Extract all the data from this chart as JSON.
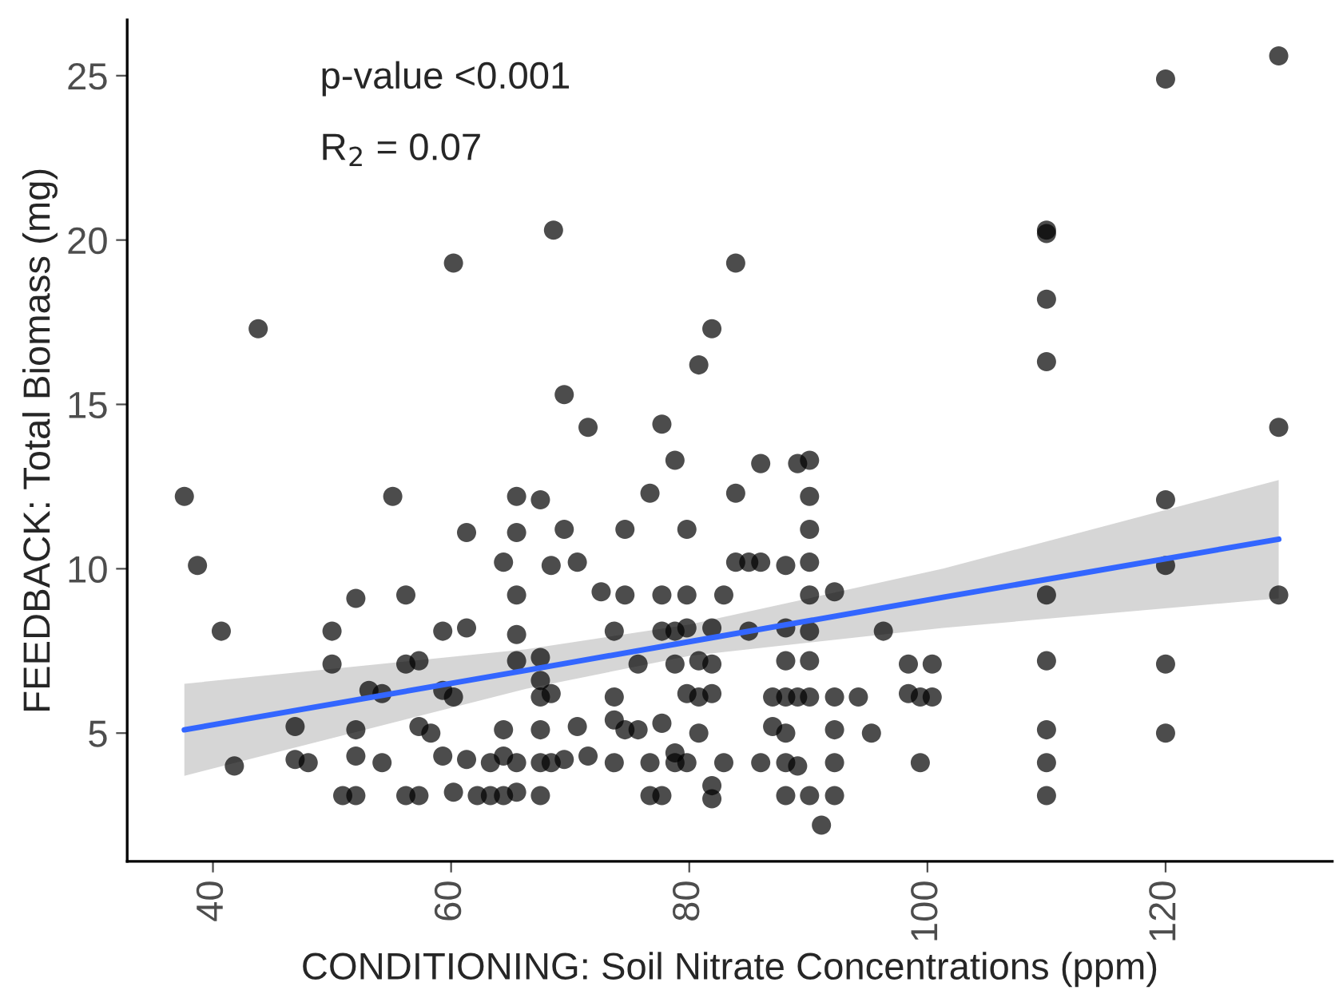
{
  "chart_data": {
    "type": "scatter",
    "xlabel": "CONDITIONING: Soil Nitrate Concentrations (ppm)",
    "ylabel": "FEEDBACK: Total Biomass (mg)",
    "xlim": [
      32.8,
      134
    ],
    "ylim": [
      1.1,
      26.7
    ],
    "xticks": [
      40,
      60,
      80,
      100,
      120
    ],
    "yticks": [
      5,
      10,
      15,
      20,
      25
    ],
    "grid": false,
    "legend": false,
    "annotations": [
      "p-value <0.001",
      "R$_{2}$ = 0.07"
    ],
    "series": [
      {
        "marker": "circle",
        "color": "#000000",
        "x": [
          60.2,
          43.8,
          37.6,
          38.7,
          55.1,
          65.5,
          61.3,
          65.5,
          64.4,
          65.5,
          52.0,
          56.2,
          40.7,
          50.0,
          59.3,
          61.3,
          65.5,
          50.0,
          56.2,
          57.3,
          65.5,
          53.1,
          54.2,
          59.3,
          60.2,
          46.9,
          52.0,
          57.3,
          58.3,
          64.4,
          41.8,
          46.9,
          48.0,
          52.0,
          54.2,
          59.3,
          61.3,
          63.3,
          64.4,
          65.5,
          50.9,
          52.0,
          56.2,
          57.3,
          60.2,
          62.2,
          63.3,
          64.4,
          65.5,
          68.6,
          83.9,
          81.9,
          80.8,
          69.5,
          71.5,
          77.7,
          78.8,
          86.0,
          89.1,
          90.1,
          67.5,
          76.7,
          83.9,
          90.1,
          69.5,
          74.6,
          79.8,
          90.1,
          68.4,
          70.6,
          83.9,
          85.0,
          86.0,
          88.1,
          90.1,
          72.6,
          74.6,
          77.7,
          79.8,
          82.9,
          90.1,
          92.2,
          73.7,
          77.7,
          78.8,
          79.8,
          81.9,
          85.0,
          88.1,
          90.1,
          96.3,
          67.5,
          75.7,
          78.8,
          80.8,
          81.9,
          88.1,
          90.1,
          98.4,
          100.4,
          67.5,
          67.5,
          68.4,
          73.7,
          79.8,
          80.8,
          81.9,
          87.0,
          88.1,
          89.1,
          90.1,
          92.2,
          94.2,
          98.4,
          99.4,
          100.4,
          67.5,
          70.6,
          73.7,
          74.6,
          75.7,
          77.7,
          80.8,
          87.0,
          88.1,
          92.2,
          95.3,
          67.5,
          68.4,
          69.5,
          71.5,
          73.7,
          76.7,
          78.8,
          78.8,
          79.8,
          82.9,
          86.0,
          88.1,
          89.1,
          92.2,
          99.4,
          67.5,
          76.7,
          77.7,
          81.9,
          81.9,
          88.1,
          90.1,
          92.2,
          91.1,
          120,
          129.5,
          110,
          110,
          110,
          110,
          129.5,
          120,
          120,
          110,
          129.5,
          110,
          120,
          110,
          120,
          110,
          110
        ],
        "values": [
          19.3,
          17.3,
          12.2,
          10.1,
          12.2,
          12.2,
          11.1,
          11.1,
          10.2,
          9.2,
          9.1,
          9.2,
          8.1,
          8.1,
          8.1,
          8.2,
          8.0,
          7.1,
          7.1,
          7.2,
          7.2,
          6.3,
          6.2,
          6.3,
          6.1,
          5.2,
          5.1,
          5.2,
          5.0,
          5.1,
          4.0,
          4.2,
          4.1,
          4.3,
          4.1,
          4.3,
          4.2,
          4.1,
          4.3,
          4.1,
          3.1,
          3.1,
          3.1,
          3.1,
          3.2,
          3.1,
          3.1,
          3.1,
          3.2,
          20.3,
          19.3,
          17.3,
          16.2,
          15.3,
          14.3,
          14.4,
          13.3,
          13.2,
          13.2,
          13.3,
          12.1,
          12.3,
          12.3,
          12.2,
          11.2,
          11.2,
          11.2,
          11.2,
          10.1,
          10.2,
          10.2,
          10.2,
          10.2,
          10.1,
          10.2,
          9.3,
          9.2,
          9.2,
          9.2,
          9.2,
          9.2,
          9.3,
          8.1,
          8.1,
          8.1,
          8.2,
          8.2,
          8.1,
          8.2,
          8.1,
          8.1,
          7.3,
          7.1,
          7.1,
          7.2,
          7.1,
          7.2,
          7.2,
          7.1,
          7.1,
          6.6,
          6.1,
          6.2,
          6.1,
          6.2,
          6.1,
          6.2,
          6.1,
          6.1,
          6.1,
          6.1,
          6.1,
          6.1,
          6.2,
          6.1,
          6.1,
          5.1,
          5.2,
          5.4,
          5.1,
          5.1,
          5.3,
          5.0,
          5.2,
          5.0,
          5.1,
          5.0,
          4.1,
          4.1,
          4.2,
          4.3,
          4.1,
          4.1,
          4.4,
          4.1,
          4.1,
          4.1,
          4.1,
          4.1,
          4.0,
          4.1,
          4.1,
          3.1,
          3.1,
          3.1,
          3.4,
          3.0,
          3.1,
          3.1,
          3.1,
          2.2,
          24.9,
          25.6,
          20.3,
          20.2,
          18.2,
          16.3,
          14.3,
          12.1,
          10.1,
          9.2,
          9.2,
          7.2,
          7.1,
          5.1,
          5.0,
          4.1,
          3.1
        ]
      },
      {
        "type": "line",
        "color": "#3366ff",
        "x": [
          37.6,
          66.3,
          80,
          101.3,
          129.5
        ],
        "values": [
          5.1,
          6.91,
          7.78,
          9.13,
          10.9
        ],
        "lower": [
          3.7,
          6.35,
          7.35,
          8.2,
          9.1
        ],
        "upper": [
          6.5,
          7.55,
          8.3,
          10.0,
          12.7
        ]
      }
    ]
  }
}
